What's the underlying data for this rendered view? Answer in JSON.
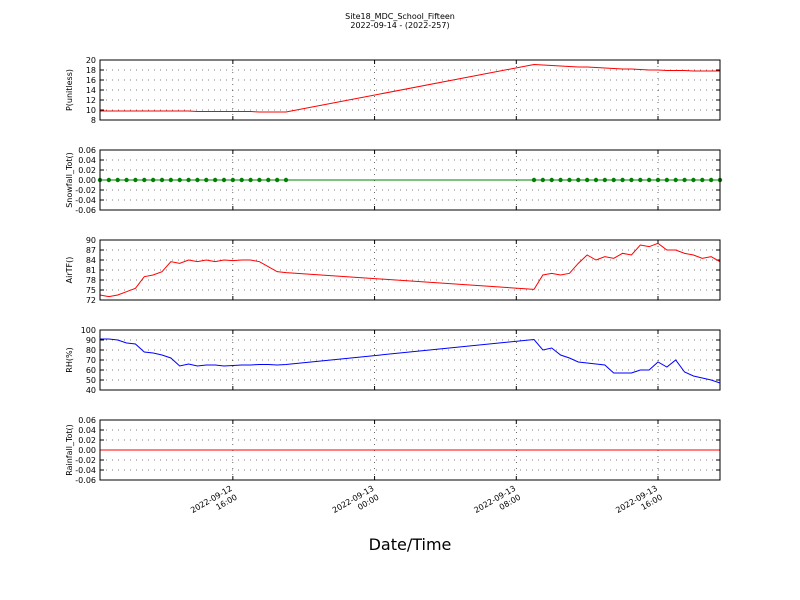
{
  "chart_data": {
    "type": "line",
    "title": "Site18_MDC_School_Fifteen",
    "subtitle": "2022-09-14 - (2022-257)",
    "xlabel": "Date/Time",
    "grid": true,
    "x": [
      "2022-09-12 08:30",
      "2022-09-12 09:00",
      "2022-09-12 09:30",
      "2022-09-12 10:00",
      "2022-09-12 10:30",
      "2022-09-12 11:00",
      "2022-09-12 11:30",
      "2022-09-12 12:00",
      "2022-09-12 12:30",
      "2022-09-12 13:00",
      "2022-09-12 13:30",
      "2022-09-12 14:00",
      "2022-09-12 14:30",
      "2022-09-12 15:00",
      "2022-09-12 15:30",
      "2022-09-12 16:00",
      "2022-09-12 16:30",
      "2022-09-12 17:00",
      "2022-09-12 17:30",
      "2022-09-12 18:00",
      "2022-09-12 18:30",
      "2022-09-12 19:00",
      "2022-09-13 09:00",
      "2022-09-13 09:30",
      "2022-09-13 10:00",
      "2022-09-13 10:30",
      "2022-09-13 11:00",
      "2022-09-13 11:30",
      "2022-09-13 12:00",
      "2022-09-13 12:30",
      "2022-09-13 13:00",
      "2022-09-13 13:30",
      "2022-09-13 14:00",
      "2022-09-13 14:30",
      "2022-09-13 15:00",
      "2022-09-13 15:30",
      "2022-09-13 16:00",
      "2022-09-13 16:30",
      "2022-09-13 17:00",
      "2022-09-13 17:30",
      "2022-09-13 18:00",
      "2022-09-13 18:30",
      "2022-09-13 19:00",
      "2022-09-13 19:30"
    ],
    "xlim": [
      "2022-09-12 08:30",
      "2022-09-13 19:30"
    ],
    "xticks": [
      {
        "value": "2022-09-12 16:00",
        "label": "2022-09-12\n16:00"
      },
      {
        "value": "2022-09-13 00:00",
        "label": "2022-09-13\n00:00"
      },
      {
        "value": "2022-09-13 08:00",
        "label": "2022-09-13\n08:00"
      },
      {
        "value": "2022-09-13 16:00",
        "label": "2022-09-13\n16:00"
      }
    ],
    "panels": [
      {
        "ylabel": "P(unitless)",
        "ylim": [
          8,
          20
        ],
        "yticks": [
          8,
          10,
          12,
          14,
          16,
          18,
          20
        ],
        "series": [
          {
            "color": "#ff0000",
            "values": [
              9.8,
              9.8,
              9.8,
              9.8,
              9.8,
              9.8,
              9.8,
              9.8,
              9.8,
              9.8,
              9.8,
              9.7,
              9.7,
              9.7,
              9.7,
              9.7,
              9.7,
              9.7,
              9.6,
              9.6,
              9.6,
              9.6,
              19.1,
              19,
              18.9,
              18.8,
              18.7,
              18.6,
              18.6,
              18.5,
              18.4,
              18.3,
              18.2,
              18.2,
              18.1,
              18,
              18,
              17.9,
              17.9,
              17.9,
              17.8,
              17.8,
              17.8,
              17.8
            ]
          }
        ]
      },
      {
        "ylabel": "Snowfall_Tot()",
        "ylim": [
          -0.06,
          0.06
        ],
        "yticks": [
          {
            "value": -0.06,
            "label": "-0.06"
          },
          {
            "value": -0.04,
            "label": "-0.04"
          },
          {
            "value": -0.02,
            "label": "-0.02"
          },
          {
            "value": 0,
            "label": "0.00"
          },
          {
            "value": 0.02,
            "label": "0.02"
          },
          {
            "value": 0.04,
            "label": "0.04"
          },
          {
            "value": 0.06,
            "label": "0.06"
          }
        ],
        "series": [
          {
            "color": "#008000",
            "marker": "o",
            "values": [
              0,
              0,
              0,
              0,
              0,
              0,
              0,
              0,
              0,
              0,
              0,
              0,
              0,
              0,
              0,
              0,
              0,
              0,
              0,
              0,
              0,
              0,
              0,
              0,
              0,
              0,
              0,
              0,
              0,
              0,
              0,
              0,
              0,
              0,
              0,
              0,
              0,
              0,
              0,
              0,
              0,
              0,
              0,
              0
            ]
          }
        ]
      },
      {
        "ylabel": "AirTF()",
        "ylim": [
          72,
          90
        ],
        "yticks": [
          72,
          75,
          78,
          81,
          84,
          87,
          90
        ],
        "series": [
          {
            "color": "#ff0000",
            "values": [
              73.5,
              73,
              73.5,
              74.5,
              75.5,
              79,
              79.5,
              80.5,
              83.5,
              83,
              84,
              83.5,
              84,
              83.5,
              84,
              83.8,
              84,
              84,
              83.5,
              82,
              80.5,
              80.2,
              75.2,
              79.5,
              80,
              79.5,
              80,
              83,
              85.5,
              84,
              85,
              84.5,
              86,
              85.5,
              88.5,
              88,
              89,
              87,
              87,
              86,
              85.5,
              84.5,
              85,
              83.5
            ]
          }
        ]
      },
      {
        "ylabel": "RH(%)",
        "ylim": [
          40,
          100
        ],
        "yticks": [
          40,
          50,
          60,
          70,
          80,
          90,
          100
        ],
        "series": [
          {
            "color": "#0000ff",
            "values": [
              91,
              91,
              90,
              87,
              86,
              78,
              77,
              75,
              72,
              64,
              66,
              64,
              65,
              65,
              64,
              64.5,
              65,
              65,
              65.5,
              65.5,
              65,
              65.5,
              90.5,
              80,
              82,
              75,
              72,
              68,
              67,
              66,
              65,
              57,
              57,
              57,
              60,
              60,
              68,
              63,
              70,
              58,
              54,
              52,
              50,
              47
            ]
          }
        ]
      },
      {
        "ylabel": "Rainfall_Tot()",
        "ylim": [
          -0.06,
          0.06
        ],
        "yticks": [
          {
            "value": -0.06,
            "label": "-0.06"
          },
          {
            "value": -0.04,
            "label": "-0.04"
          },
          {
            "value": -0.02,
            "label": "-0.02"
          },
          {
            "value": 0,
            "label": "0.00"
          },
          {
            "value": 0.02,
            "label": "0.02"
          },
          {
            "value": 0.04,
            "label": "0.04"
          },
          {
            "value": 0.06,
            "label": "0.06"
          }
        ],
        "series": [
          {
            "color": "#ff0000",
            "values": [
              0,
              0,
              0,
              0,
              0,
              0,
              0,
              0,
              0,
              0,
              0,
              0,
              0,
              0,
              0,
              0,
              0,
              0,
              0,
              0,
              0,
              0,
              0,
              0,
              0,
              0,
              0,
              0,
              0,
              0,
              0,
              0,
              0,
              0,
              0,
              0,
              0,
              0,
              0,
              0,
              0,
              0,
              0,
              0
            ]
          }
        ]
      }
    ]
  }
}
